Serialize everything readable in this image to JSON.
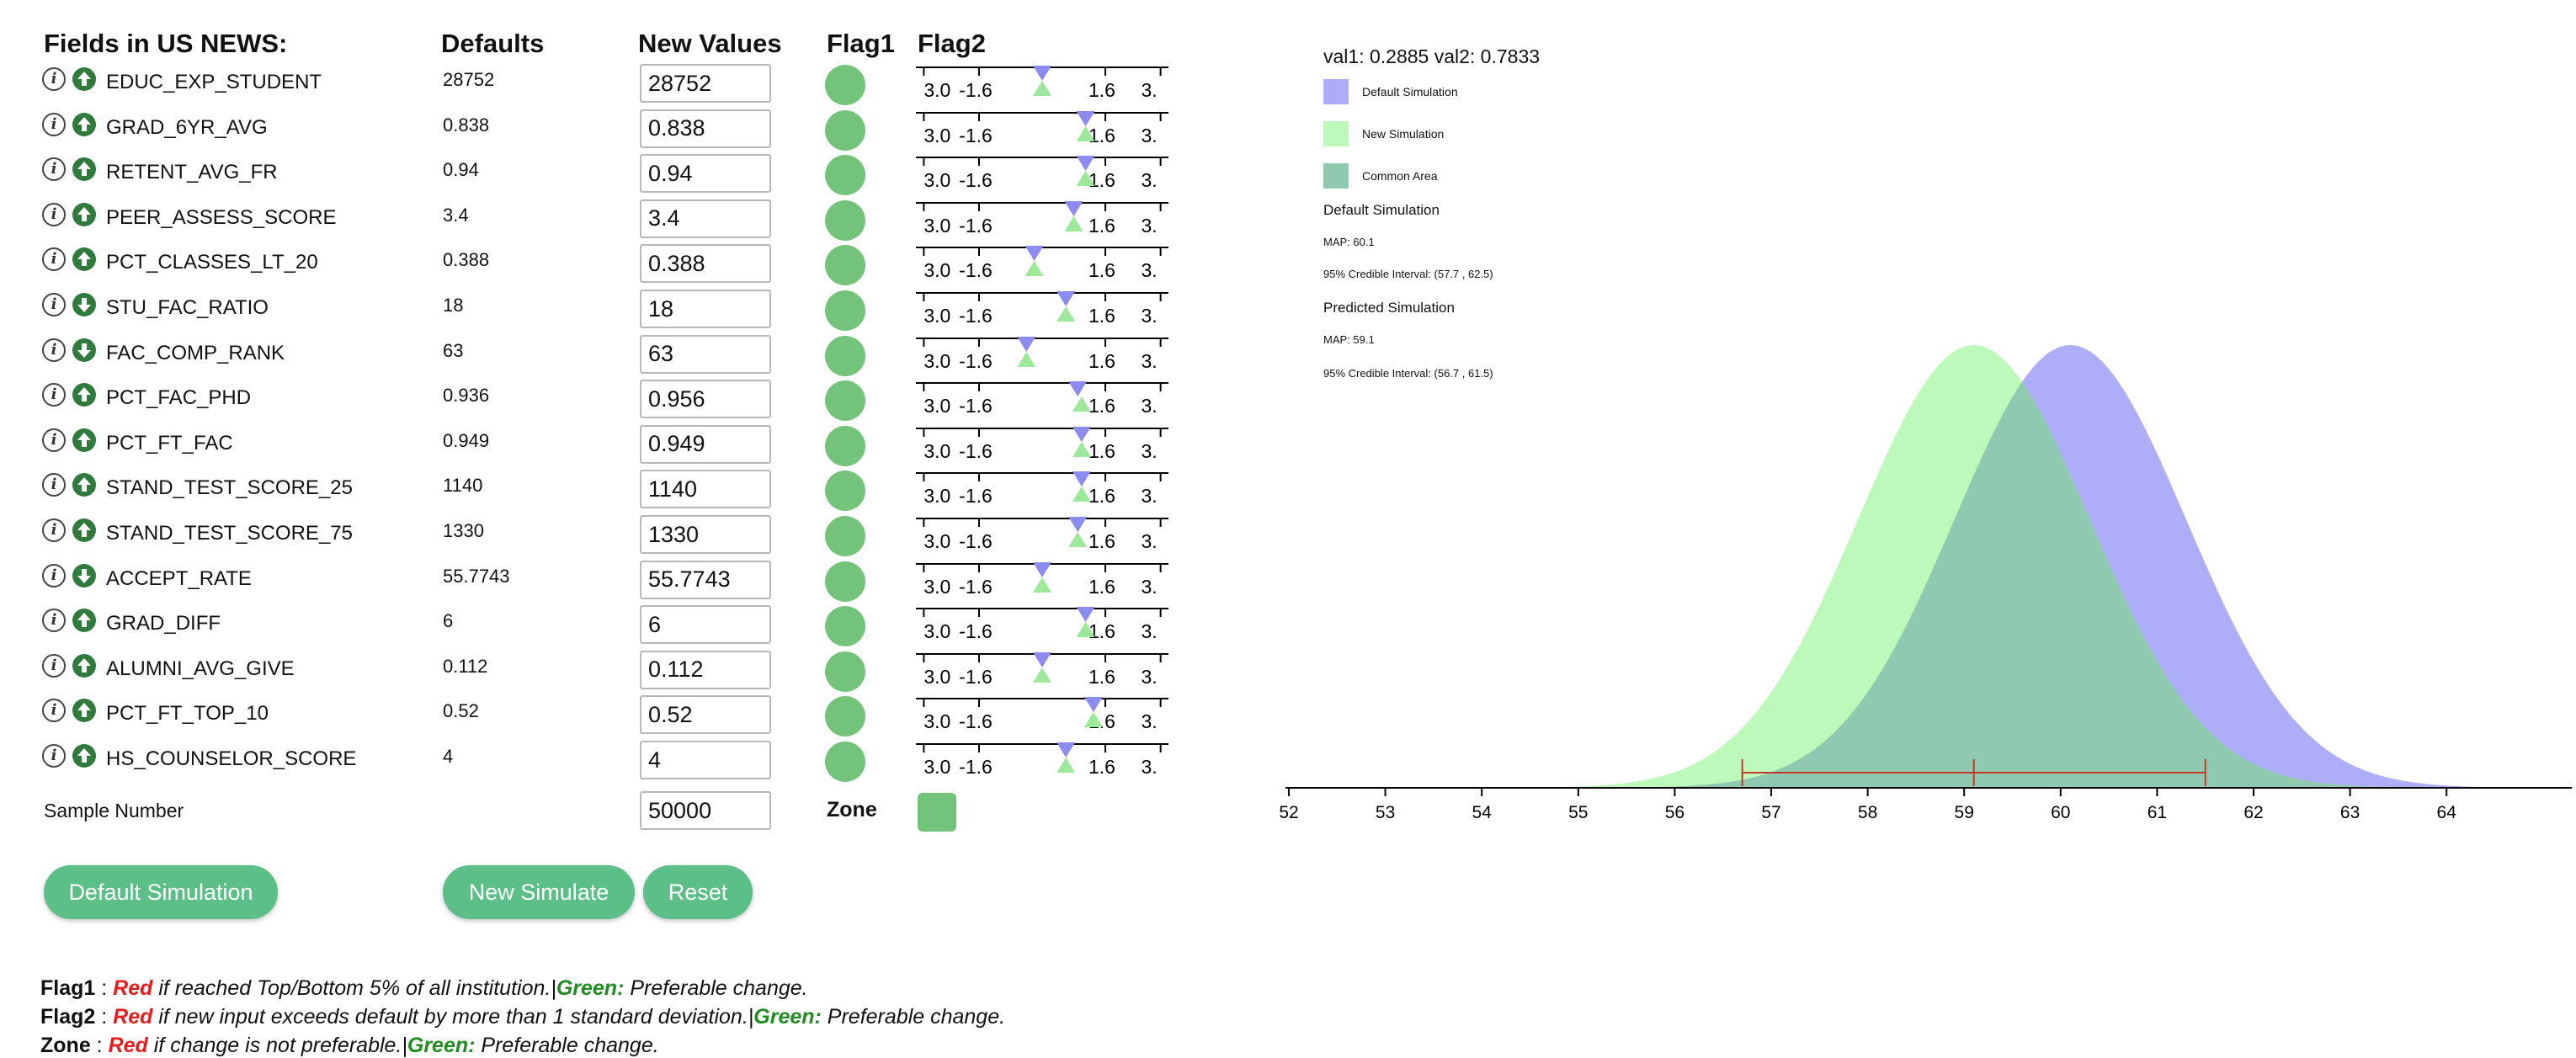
{
  "headers": {
    "fields": "Fields in US NEWS:",
    "defaults": "Defaults",
    "new_values": "New Values",
    "flag1": "Flag1",
    "flag2": "Flag2"
  },
  "rows": [
    {
      "field": "EDUC_EXP_STUDENT",
      "default": "28752",
      "new": "28752",
      "arrow": "up",
      "m1": -0.0,
      "m2": -0.0
    },
    {
      "field": "GRAD_6YR_AVG",
      "default": "0.838",
      "new": "0.838",
      "arrow": "up",
      "m1": 1.1,
      "m2": 1.1
    },
    {
      "field": "RETENT_AVG_FR",
      "default": "0.94",
      "new": "0.94",
      "arrow": "up",
      "m1": 1.1,
      "m2": 1.1
    },
    {
      "field": "PEER_ASSESS_SCORE",
      "default": "3.4",
      "new": "3.4",
      "arrow": "up",
      "m1": 0.8,
      "m2": 0.8
    },
    {
      "field": "PCT_CLASSES_LT_20",
      "default": "0.388",
      "new": "0.388",
      "arrow": "up",
      "m1": -0.2,
      "m2": -0.2
    },
    {
      "field": "STU_FAC_RATIO",
      "default": "18",
      "new": "18",
      "arrow": "down",
      "m1": 0.6,
      "m2": 0.6
    },
    {
      "field": "FAC_COMP_RANK",
      "default": "63",
      "new": "63",
      "arrow": "down",
      "m1": -0.4,
      "m2": -0.4
    },
    {
      "field": "PCT_FAC_PHD",
      "default": "0.936",
      "new": "0.956",
      "arrow": "up",
      "m1": 0.9,
      "m2": 1.0
    },
    {
      "field": "PCT_FT_FAC",
      "default": "0.949",
      "new": "0.949",
      "arrow": "up",
      "m1": 1.0,
      "m2": 1.0
    },
    {
      "field": "STAND_TEST_SCORE_25",
      "default": "1140",
      "new": "1140",
      "arrow": "up",
      "m1": 1.0,
      "m2": 1.0
    },
    {
      "field": "STAND_TEST_SCORE_75",
      "default": "1330",
      "new": "1330",
      "arrow": "up",
      "m1": 0.9,
      "m2": 0.9
    },
    {
      "field": "ACCEPT_RATE",
      "default": "55.7743",
      "new": "55.7743",
      "arrow": "down",
      "m1": 0.0,
      "m2": 0.0
    },
    {
      "field": "GRAD_DIFF",
      "default": "6",
      "new": "6",
      "arrow": "up",
      "m1": 1.1,
      "m2": 1.1
    },
    {
      "field": "ALUMNI_AVG_GIVE",
      "default": "0.112",
      "new": "0.112",
      "arrow": "up",
      "m1": -0.0,
      "m2": -0.0
    },
    {
      "field": "PCT_FT_TOP_10",
      "default": "0.52",
      "new": "0.52",
      "arrow": "up",
      "m1": 1.3,
      "m2": 1.3
    },
    {
      "field": "HS_COUNSELOR_SCORE",
      "default": "4",
      "new": "4",
      "arrow": "up",
      "m1": 0.6,
      "m2": 0.6
    }
  ],
  "scale_ticks": [
    "3.0",
    "-1.6",
    "1.6",
    "3."
  ],
  "sample": {
    "label": "Sample Number",
    "value": "50000",
    "zone_label": "Zone"
  },
  "buttons": {
    "default_sim": "Default Simulation",
    "new_sim": "New Simulate",
    "reset": "Reset"
  },
  "legend": {
    "flag1": {
      "key": "Flag1",
      "sep": " : ",
      "red": "Red",
      "red_text": " if reached Top/Bottom 5% of all institution.|",
      "green": "Green:",
      "green_text": " Preferable change."
    },
    "flag2": {
      "key": "Flag2",
      "sep": " : ",
      "red": "Red",
      "red_text": " if new input exceeds default by more than 1 standard deviation.|",
      "green": "Green:",
      "green_text": " Preferable change."
    },
    "zone": {
      "key": "Zone",
      "sep": " :  ",
      "red": "Red",
      "red_text": " if change is not preferable.|",
      "green": "Green:",
      "green_text": " Preferable change."
    }
  },
  "colors": {
    "default_sim": "#aeadf8",
    "new_sim": "#bdf9bb",
    "common": "#8fc9b0",
    "button": "#5cbf87",
    "flag_green": "#73c47a",
    "interval_red": "#c0392b"
  },
  "chart_data": {
    "type": "area",
    "info_line": "val1: 0.2885 val2: 0.7833",
    "legend_entries": [
      "Default Simulation",
      "New Simulation",
      "Common Area"
    ],
    "default_stats": {
      "heading": "Default Simulation",
      "map": "MAP: 60.1",
      "ci": "95% Credible Interval: (57.7 , 62.5)"
    },
    "predicted_stats": {
      "heading": "Predicted Simulation",
      "map": "MAP: 59.1",
      "ci": "95% Credible Interval: (56.7 , 61.5)"
    },
    "x_ticks": [
      "52",
      "53",
      "54",
      "55",
      "56",
      "57",
      "58",
      "59",
      "60",
      "61",
      "62",
      "63",
      "64"
    ],
    "xlim": [
      52,
      65.3
    ],
    "series": [
      {
        "name": "Default Simulation",
        "mean": 60.1,
        "sd": 1.2,
        "peak": 1.0
      },
      {
        "name": "New Simulation",
        "mean": 59.1,
        "sd": 1.2,
        "peak": 1.0
      }
    ],
    "interval": {
      "low": 56.7,
      "map": 59.1,
      "high": 61.5
    }
  }
}
